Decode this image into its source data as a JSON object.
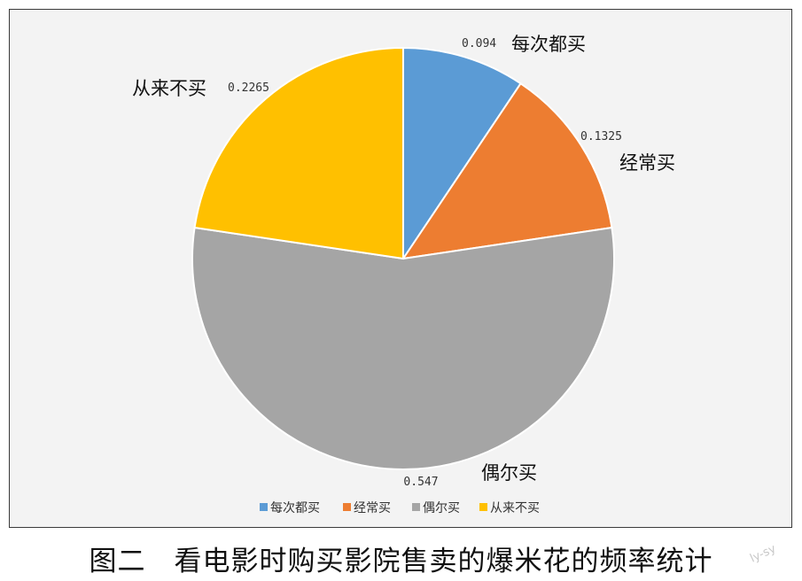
{
  "chart_data": {
    "type": "pie",
    "categories": [
      "每次都买",
      "经常买",
      "偶尔买",
      "从来不买"
    ],
    "values": [
      0.094,
      0.1325,
      0.547,
      0.2265
    ],
    "value_labels": [
      "0.094",
      "0.1325",
      "0.547",
      "0.2265"
    ],
    "colors": [
      "#5b9bd5",
      "#ed7d31",
      "#a5a5a5",
      "#ffc000"
    ],
    "legend": [
      "每次都买",
      "经常买",
      "偶尔买",
      "从来不买"
    ],
    "legend_position": "bottom",
    "start_angle": "12 o'clock, clockwise"
  },
  "caption": "图二　看电影时购买影院售卖的爆米花的频率统计",
  "watermark": "ly-sy"
}
